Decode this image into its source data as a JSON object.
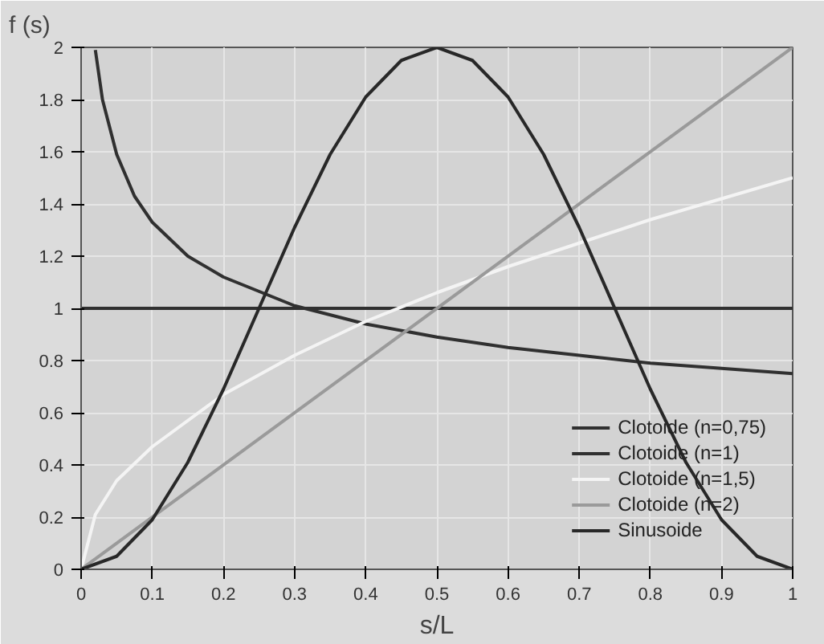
{
  "chart_data": {
    "type": "line",
    "ylabel": "f (s)",
    "xlabel": "s/L",
    "xlim": [
      0,
      1
    ],
    "ylim": [
      0,
      2
    ],
    "xticks": [
      0,
      0.1,
      0.2,
      0.3,
      0.4,
      0.5,
      0.6,
      0.7,
      0.8,
      0.9,
      1
    ],
    "yticks": [
      0,
      0.2,
      0.4,
      0.6,
      0.8,
      1,
      1.2,
      1.4,
      1.6,
      1.8,
      2
    ],
    "grid": true,
    "legend": "bottom right",
    "marker": "none",
    "line_style": "solid",
    "series": [
      {
        "name": "Clotoide (n=0,75)",
        "color": "#303030",
        "x": [
          0.02,
          0.03,
          0.05,
          0.075,
          0.1,
          0.15,
          0.2,
          0.3,
          0.4,
          0.5,
          0.6,
          0.7,
          0.8,
          0.9,
          1
        ],
        "values": [
          1.99,
          1.8,
          1.59,
          1.43,
          1.33,
          1.2,
          1.12,
          1.01,
          0.94,
          0.89,
          0.85,
          0.82,
          0.79,
          0.77,
          0.75
        ]
      },
      {
        "name": "Clotoide (n=1)",
        "color": "#303030",
        "x": [
          0,
          1
        ],
        "values": [
          1,
          1
        ]
      },
      {
        "name": "Clotoide (n=1,5)",
        "color": "#f4f4f4",
        "x": [
          0,
          0.02,
          0.05,
          0.1,
          0.2,
          0.3,
          0.4,
          0.5,
          0.6,
          0.7,
          0.8,
          0.9,
          1
        ],
        "values": [
          0,
          0.21,
          0.34,
          0.47,
          0.67,
          0.82,
          0.95,
          1.06,
          1.16,
          1.25,
          1.34,
          1.42,
          1.5
        ]
      },
      {
        "name": "Clotoide (n=2)",
        "color": "#9a9a9a",
        "x": [
          0,
          1
        ],
        "values": [
          0,
          2
        ]
      },
      {
        "name": "Sinusoide",
        "color": "#282828",
        "x": [
          0,
          0.05,
          0.1,
          0.15,
          0.2,
          0.25,
          0.3,
          0.35,
          0.4,
          0.45,
          0.5,
          0.55,
          0.6,
          0.65,
          0.7,
          0.75,
          0.8,
          0.85,
          0.9,
          0.95,
          1
        ],
        "values": [
          0,
          0.05,
          0.19,
          0.41,
          0.69,
          1,
          1.31,
          1.59,
          1.81,
          1.95,
          2,
          1.95,
          1.81,
          1.59,
          1.31,
          1,
          0.69,
          0.41,
          0.19,
          0.05,
          0
        ]
      }
    ]
  }
}
